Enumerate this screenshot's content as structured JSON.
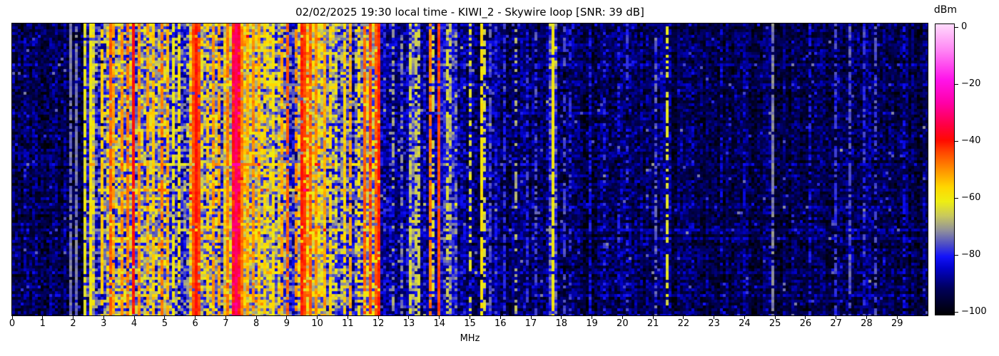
{
  "title": "02/02/2025 19:30 local time - KIWI_2 - Skywire loop [SNR: 39 dB]",
  "xlabel": "MHz",
  "x_ticks": [
    0,
    1,
    2,
    3,
    4,
    5,
    6,
    7,
    8,
    9,
    10,
    11,
    12,
    13,
    14,
    15,
    16,
    17,
    18,
    19,
    20,
    21,
    22,
    23,
    24,
    25,
    26,
    27,
    28,
    29
  ],
  "colorbar": {
    "label": "dBm",
    "ticks": [
      "0",
      "−20",
      "−40",
      "−60",
      "−80",
      "−100"
    ],
    "tick_values": [
      0,
      -20,
      -40,
      -60,
      -80,
      -100
    ]
  },
  "chart_data": {
    "type": "heatmap",
    "subtype": "radio-spectrogram-waterfall",
    "title": "02/02/2025 19:30 local time - KIWI_2 - Skywire loop [SNR: 39 dB]",
    "xlabel": "MHz",
    "x_range_mhz": [
      0,
      30
    ],
    "value_range_dbm": [
      -100,
      0
    ],
    "snr_db": 39,
    "colorbar_label": "dBm",
    "colorbar_ticks_dbm": [
      0,
      -20,
      -40,
      -60,
      -80,
      -100
    ],
    "colormap_stops": [
      [
        -100,
        "#000002"
      ],
      [
        -91,
        "#00005a"
      ],
      [
        -84,
        "#0202c8"
      ],
      [
        -80,
        "#1212fa"
      ],
      [
        -76,
        "#4a4ac8"
      ],
      [
        -71,
        "#90909b"
      ],
      [
        -66,
        "#c8c85e"
      ],
      [
        -61,
        "#eeee12"
      ],
      [
        -56,
        "#ffd600"
      ],
      [
        -50,
        "#ff9000"
      ],
      [
        -44,
        "#ff4600"
      ],
      [
        -40,
        "#ff0a00"
      ],
      [
        -35,
        "#ff0040"
      ],
      [
        -27,
        "#ff00a8"
      ],
      [
        -19,
        "#ff14ea"
      ],
      [
        -9,
        "#ff85f4"
      ],
      [
        0,
        "#ffdbfc"
      ]
    ],
    "bands": [
      [
        0.0,
        2.3,
        -92,
        7,
        3
      ],
      [
        2.3,
        2.52,
        -83,
        10,
        5
      ],
      [
        2.52,
        2.72,
        -64,
        10,
        4
      ],
      [
        2.72,
        2.95,
        -82,
        11,
        5
      ],
      [
        2.95,
        5.15,
        -71,
        13,
        6
      ],
      [
        5.15,
        5.75,
        -79,
        12,
        5
      ],
      [
        5.75,
        6.25,
        -64,
        12,
        6
      ],
      [
        6.25,
        6.95,
        -73,
        13,
        6
      ],
      [
        6.95,
        7.2,
        -62,
        10,
        5
      ],
      [
        7.2,
        7.45,
        -41,
        7,
        3
      ],
      [
        7.45,
        8.15,
        -64,
        12,
        6
      ],
      [
        8.15,
        8.95,
        -71,
        13,
        6
      ],
      [
        8.95,
        9.35,
        -79,
        10,
        5
      ],
      [
        9.35,
        10.05,
        -62,
        12,
        6
      ],
      [
        10.05,
        10.65,
        -70,
        13,
        6
      ],
      [
        10.65,
        11.45,
        -77,
        12,
        6
      ],
      [
        11.45,
        12.1,
        -64,
        12,
        6
      ],
      [
        12.1,
        13.0,
        -87,
        8,
        4
      ],
      [
        13.0,
        13.4,
        -80,
        10,
        5
      ],
      [
        13.4,
        14.1,
        -86,
        8,
        4
      ],
      [
        14.1,
        14.55,
        -82,
        9,
        5
      ],
      [
        14.55,
        15.9,
        -88,
        8,
        4
      ],
      [
        15.9,
        17.55,
        -91,
        7,
        3
      ],
      [
        17.55,
        17.85,
        -80,
        8,
        4
      ],
      [
        17.85,
        20.9,
        -92,
        7,
        3
      ],
      [
        20.9,
        21.6,
        -90,
        7,
        3
      ],
      [
        21.6,
        26.8,
        -93,
        6,
        3
      ],
      [
        26.8,
        28.6,
        -91,
        7,
        3
      ],
      [
        28.6,
        30.0,
        -93,
        6,
        3
      ]
    ],
    "carrier_lines": [
      [
        1.87,
        -73,
        0.9
      ],
      [
        2.06,
        -73,
        0.9
      ],
      [
        2.42,
        -62,
        0.85
      ],
      [
        2.58,
        -60,
        0.9
      ],
      [
        2.95,
        -55,
        0.8
      ],
      [
        3.2,
        -46,
        0.9
      ],
      [
        3.33,
        -52,
        0.8
      ],
      [
        3.6,
        -50,
        0.7
      ],
      [
        3.8,
        -48,
        0.8
      ],
      [
        3.95,
        -40,
        0.95
      ],
      [
        4.17,
        -50,
        0.8
      ],
      [
        4.4,
        -52,
        0.7
      ],
      [
        4.62,
        -55,
        0.7
      ],
      [
        4.9,
        -48,
        0.8
      ],
      [
        5.06,
        -52,
        0.7
      ],
      [
        5.3,
        -60,
        0.7
      ],
      [
        5.45,
        -58,
        0.7
      ],
      [
        5.9,
        -45,
        0.9
      ],
      [
        6.0,
        -40,
        0.95
      ],
      [
        6.12,
        -44,
        0.9
      ],
      [
        6.4,
        -55,
        0.7
      ],
      [
        6.6,
        -50,
        0.8
      ],
      [
        6.8,
        -52,
        0.7
      ],
      [
        7.05,
        -48,
        0.8
      ],
      [
        7.3,
        -32,
        1.0
      ],
      [
        7.38,
        -38,
        0.95
      ],
      [
        7.55,
        -48,
        0.85
      ],
      [
        7.75,
        -52,
        0.7
      ],
      [
        7.9,
        -50,
        0.8
      ],
      [
        8.05,
        -55,
        0.7
      ],
      [
        8.3,
        -56,
        0.7
      ],
      [
        8.55,
        -58,
        0.6
      ],
      [
        8.8,
        -52,
        0.7
      ],
      [
        9.05,
        -46,
        0.85
      ],
      [
        9.27,
        -50,
        0.7
      ],
      [
        9.45,
        -41,
        0.95
      ],
      [
        9.6,
        -44,
        0.9
      ],
      [
        9.78,
        -46,
        0.85
      ],
      [
        9.95,
        -50,
        0.8
      ],
      [
        10.2,
        -52,
        0.8
      ],
      [
        10.45,
        -56,
        0.7
      ],
      [
        10.9,
        -56,
        0.7
      ],
      [
        11.1,
        -52,
        0.7
      ],
      [
        11.33,
        -58,
        0.6
      ],
      [
        11.55,
        -46,
        0.85
      ],
      [
        11.72,
        -44,
        0.9
      ],
      [
        11.88,
        -46,
        0.85
      ],
      [
        12.05,
        -41,
        0.95
      ],
      [
        12.5,
        -70,
        0.5
      ],
      [
        12.75,
        -72,
        0.4
      ],
      [
        13.08,
        -64,
        0.6
      ],
      [
        13.2,
        -66,
        0.6
      ],
      [
        13.32,
        -65,
        0.6
      ],
      [
        13.65,
        -48,
        0.85
      ],
      [
        13.82,
        -64,
        0.5
      ],
      [
        14.0,
        -44,
        0.95
      ],
      [
        14.22,
        -64,
        0.5
      ],
      [
        14.35,
        -66,
        0.5
      ],
      [
        14.99,
        -63,
        0.5
      ],
      [
        15.34,
        -58,
        0.85
      ],
      [
        15.5,
        -64,
        0.5
      ],
      [
        15.7,
        -75,
        0.5
      ],
      [
        16.1,
        -78,
        0.5
      ],
      [
        16.5,
        -68,
        0.35
      ],
      [
        16.9,
        -78,
        0.4
      ],
      [
        17.15,
        -76,
        0.4
      ],
      [
        17.7,
        -60,
        0.9
      ],
      [
        18.05,
        -76,
        0.5
      ],
      [
        18.3,
        -78,
        0.4
      ],
      [
        18.9,
        -80,
        0.4
      ],
      [
        19.4,
        -79,
        0.4
      ],
      [
        19.9,
        -80,
        0.4
      ],
      [
        20.15,
        -78,
        0.4
      ],
      [
        21.05,
        -74,
        0.5
      ],
      [
        21.45,
        -63,
        0.6
      ],
      [
        22.3,
        -83,
        0.4
      ],
      [
        23.2,
        -82,
        0.4
      ],
      [
        24.0,
        -83,
        0.3
      ],
      [
        24.9,
        -72,
        0.85
      ],
      [
        26.1,
        -80,
        0.4
      ],
      [
        27.0,
        -77,
        0.6
      ],
      [
        27.4,
        -75,
        0.6
      ],
      [
        27.9,
        -77,
        0.5
      ],
      [
        28.3,
        -76,
        0.5
      ],
      [
        29.2,
        -82,
        0.4
      ]
    ],
    "row_sweeps": [
      [
        0.475,
        9,
        2.5,
        12.1
      ],
      [
        0.475,
        3,
        0,
        30
      ],
      [
        0.565,
        9,
        2.5,
        12.1
      ],
      [
        0.565,
        3,
        0,
        30
      ],
      [
        0.07,
        3,
        0,
        30
      ],
      [
        0.135,
        3.5,
        0,
        30
      ],
      [
        0.2,
        2.5,
        0,
        30
      ],
      [
        0.3,
        3,
        0,
        30
      ],
      [
        0.38,
        2.5,
        0,
        30
      ],
      [
        0.62,
        3,
        0,
        30
      ],
      [
        0.7,
        2.5,
        0,
        30
      ],
      [
        0.73,
        3.5,
        0,
        30
      ],
      [
        0.755,
        4,
        2.5,
        12.1
      ],
      [
        0.84,
        3,
        0,
        30
      ],
      [
        0.92,
        2.5,
        0,
        30
      ]
    ]
  }
}
